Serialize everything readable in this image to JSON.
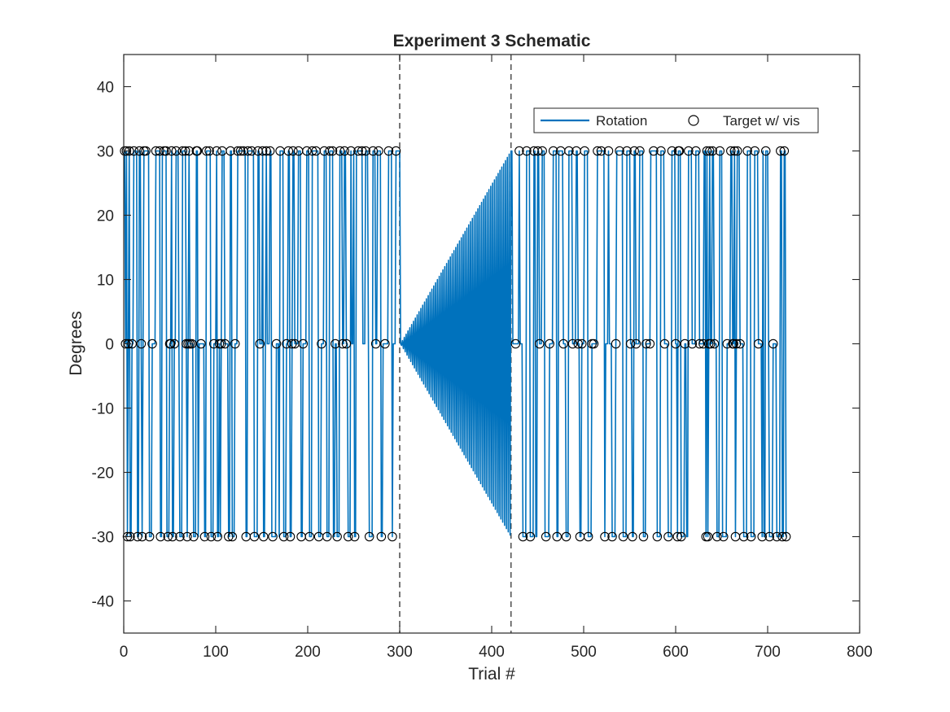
{
  "chart_data": {
    "type": "line",
    "title": "Experiment 3 Schematic",
    "xlabel": "Trial #",
    "ylabel": "Degrees",
    "xlim": [
      0,
      800
    ],
    "ylim": [
      -45,
      45
    ],
    "xticks": [
      0,
      100,
      200,
      300,
      400,
      500,
      600,
      700,
      800
    ],
    "yticks": [
      -40,
      -30,
      -20,
      -10,
      0,
      10,
      20,
      30,
      40
    ],
    "grid": false,
    "legend_position": "top-right",
    "colors": {
      "rotation": "#0072BD",
      "markers": "#000000",
      "vlines": "#555555"
    },
    "series": [
      {
        "name": "Rotation",
        "style": "line",
        "random_blocks": [
          {
            "trial_start": 1,
            "trial_end": 300,
            "levels": [
              -30,
              0,
              30
            ]
          },
          {
            "trial_start": 422,
            "trial_end": 720,
            "levels": [
              -30,
              0,
              30
            ]
          }
        ],
        "gradual_block": {
          "trial_start": 301,
          "trial_end": 421,
          "amplitude_start": 0,
          "amplitude_end": 30,
          "pattern": "alternating sign"
        }
      },
      {
        "name": "Target w/ vis",
        "style": "markers",
        "marker": "open circle",
        "trials": [
          1,
          2,
          3,
          4,
          5,
          6,
          7,
          9,
          11,
          15,
          17,
          19,
          20,
          22,
          24,
          28,
          31,
          35,
          39,
          40,
          44,
          46,
          48,
          50,
          51,
          52,
          53,
          55,
          57,
          61,
          64,
          67,
          68,
          69,
          70,
          71,
          72,
          74,
          76,
          79,
          80,
          84,
          88,
          90,
          93,
          95,
          98,
          101,
          102,
          104,
          106,
          107,
          110,
          114,
          116,
          118,
          121,
          124,
          127,
          130,
          133,
          135,
          139,
          142,
          146,
          148,
          151,
          152,
          155,
          159,
          162,
          166,
          170,
          174,
          177,
          179,
          181,
          183,
          184,
          186,
          190,
          193,
          195,
          199,
          202,
          205,
          209,
          212,
          215,
          218,
          221,
          224,
          227,
          230,
          232,
          235,
          238,
          240,
          242,
          244,
          247,
          251,
          255,
          259,
          263,
          267,
          271,
          274,
          277,
          280,
          284,
          288,
          292,
          296,
          426,
          430,
          434,
          438,
          442,
          446,
          450,
          452,
          455,
          459,
          463,
          467,
          471,
          475,
          478,
          481,
          484,
          488,
          492,
          494,
          496,
          498,
          501,
          505,
          509,
          511,
          515,
          519,
          523,
          527,
          531,
          535,
          539,
          543,
          547,
          551,
          553,
          555,
          557,
          561,
          565,
          568,
          572,
          576,
          580,
          584,
          588,
          592,
          596,
          600,
          602,
          603,
          604,
          606,
          610,
          614,
          618,
          622,
          626,
          630,
          633,
          634,
          635,
          636,
          637,
          638,
          640,
          642,
          645,
          648,
          652,
          656,
          660,
          662,
          663,
          664,
          665,
          666,
          667,
          670,
          674,
          678,
          682,
          686,
          690,
          694,
          698,
          702,
          706,
          710,
          714,
          716,
          718,
          720
        ],
        "values": [
          30,
          0,
          30,
          -30,
          0,
          30,
          -30,
          0,
          30,
          -30,
          30,
          0,
          -30,
          30,
          30,
          -30,
          0,
          30,
          30,
          -30,
          30,
          30,
          -30,
          0,
          0,
          30,
          -30,
          0,
          30,
          -30,
          30,
          30,
          0,
          -30,
          0,
          30,
          0,
          0,
          -30,
          30,
          30,
          0,
          -30,
          30,
          30,
          -30,
          0,
          30,
          -30,
          0,
          0,
          30,
          0,
          -30,
          30,
          -30,
          0,
          30,
          30,
          30,
          -30,
          30,
          30,
          -30,
          30,
          0,
          30,
          -30,
          30,
          30,
          -30,
          0,
          30,
          -30,
          0,
          30,
          -30,
          0,
          30,
          0,
          30,
          -30,
          0,
          30,
          -30,
          30,
          30,
          -30,
          0,
          30,
          -30,
          30,
          30,
          0,
          -30,
          30,
          0,
          30,
          0,
          -30,
          30,
          -30,
          30,
          30,
          30,
          -30,
          30,
          0,
          30,
          -30,
          0,
          30,
          -30,
          30,
          0,
          30,
          -30,
          30,
          -30,
          30,
          30,
          0,
          30,
          -30,
          0,
          30,
          -30,
          30,
          0,
          -30,
          30,
          0,
          30,
          0,
          -30,
          0,
          30,
          -30,
          0,
          0,
          30,
          30,
          -30,
          30,
          -30,
          0,
          30,
          -30,
          30,
          0,
          -30,
          30,
          0,
          30,
          -30,
          0,
          0,
          30,
          -30,
          30,
          0,
          -30,
          30,
          0,
          -30,
          30,
          30,
          -30,
          0,
          30,
          0,
          30,
          0,
          0,
          -30,
          30,
          -30,
          0,
          30,
          0,
          30,
          0,
          -30,
          30,
          -30,
          0,
          30,
          0,
          0,
          30,
          -30,
          0,
          30,
          0,
          -30,
          30,
          -30,
          30,
          0,
          -30,
          30,
          -30,
          0,
          -30,
          30,
          -30,
          30,
          -30
        ]
      }
    ],
    "vertical_lines": [
      300,
      421
    ]
  }
}
